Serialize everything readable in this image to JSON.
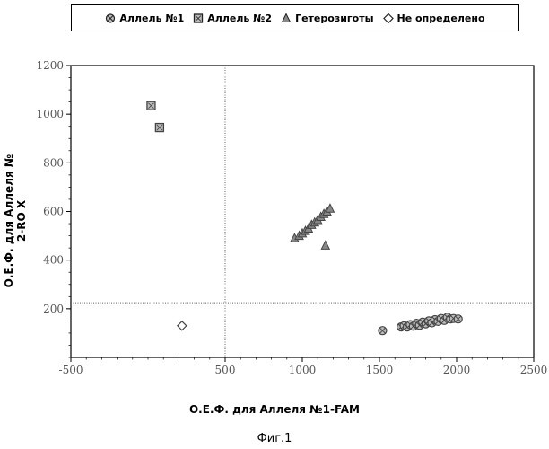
{
  "chart_data": {
    "type": "scatter",
    "xlabel": "О.Е.Ф. для Аллеля №1-FAM",
    "ylabel": "О.Е.Ф. для Аллеля № 2-RO X",
    "xlim": [
      -500,
      2500
    ],
    "ylim": [
      0,
      1200
    ],
    "x_ticks": [
      "-500",
      "500",
      "1000",
      "1500",
      "2000",
      "2500"
    ],
    "x_tick_values": [
      -500,
      500,
      1000,
      1500,
      2000,
      2500
    ],
    "y_ticks": [
      "200",
      "400",
      "600",
      "800",
      "1000",
      "1200"
    ],
    "y_tick_values": [
      200,
      400,
      600,
      800,
      1000,
      1200
    ],
    "threshold_x": 500,
    "threshold_y": 225,
    "legend_position": "top",
    "grid": false,
    "series": [
      {
        "name": "Аллель №1",
        "marker": "circle-x",
        "color": "#444444",
        "points": [
          [
            1520,
            110
          ],
          [
            1640,
            125
          ],
          [
            1660,
            130
          ],
          [
            1680,
            125
          ],
          [
            1700,
            135
          ],
          [
            1720,
            128
          ],
          [
            1740,
            140
          ],
          [
            1760,
            132
          ],
          [
            1780,
            145
          ],
          [
            1800,
            138
          ],
          [
            1820,
            150
          ],
          [
            1840,
            142
          ],
          [
            1860,
            155
          ],
          [
            1880,
            148
          ],
          [
            1900,
            160
          ],
          [
            1920,
            152
          ],
          [
            1940,
            165
          ],
          [
            1960,
            158
          ],
          [
            1980,
            160
          ],
          [
            2010,
            158
          ]
        ]
      },
      {
        "name": "Аллель №2",
        "marker": "square",
        "color": "#444444",
        "points": [
          [
            20,
            1035
          ],
          [
            75,
            945
          ]
        ]
      },
      {
        "name": "Гетерозиготы",
        "marker": "triangle",
        "color": "#444444",
        "points": [
          [
            950,
            490
          ],
          [
            980,
            500
          ],
          [
            1000,
            510
          ],
          [
            1020,
            520
          ],
          [
            1040,
            530
          ],
          [
            1060,
            545
          ],
          [
            1080,
            555
          ],
          [
            1100,
            565
          ],
          [
            1120,
            578
          ],
          [
            1140,
            590
          ],
          [
            1160,
            600
          ],
          [
            1180,
            612
          ],
          [
            1150,
            460
          ]
        ]
      },
      {
        "name": "Не определено",
        "marker": "diamond",
        "color": "#444444",
        "points": [
          [
            220,
            130
          ]
        ]
      }
    ]
  },
  "caption": "Фиг.1"
}
